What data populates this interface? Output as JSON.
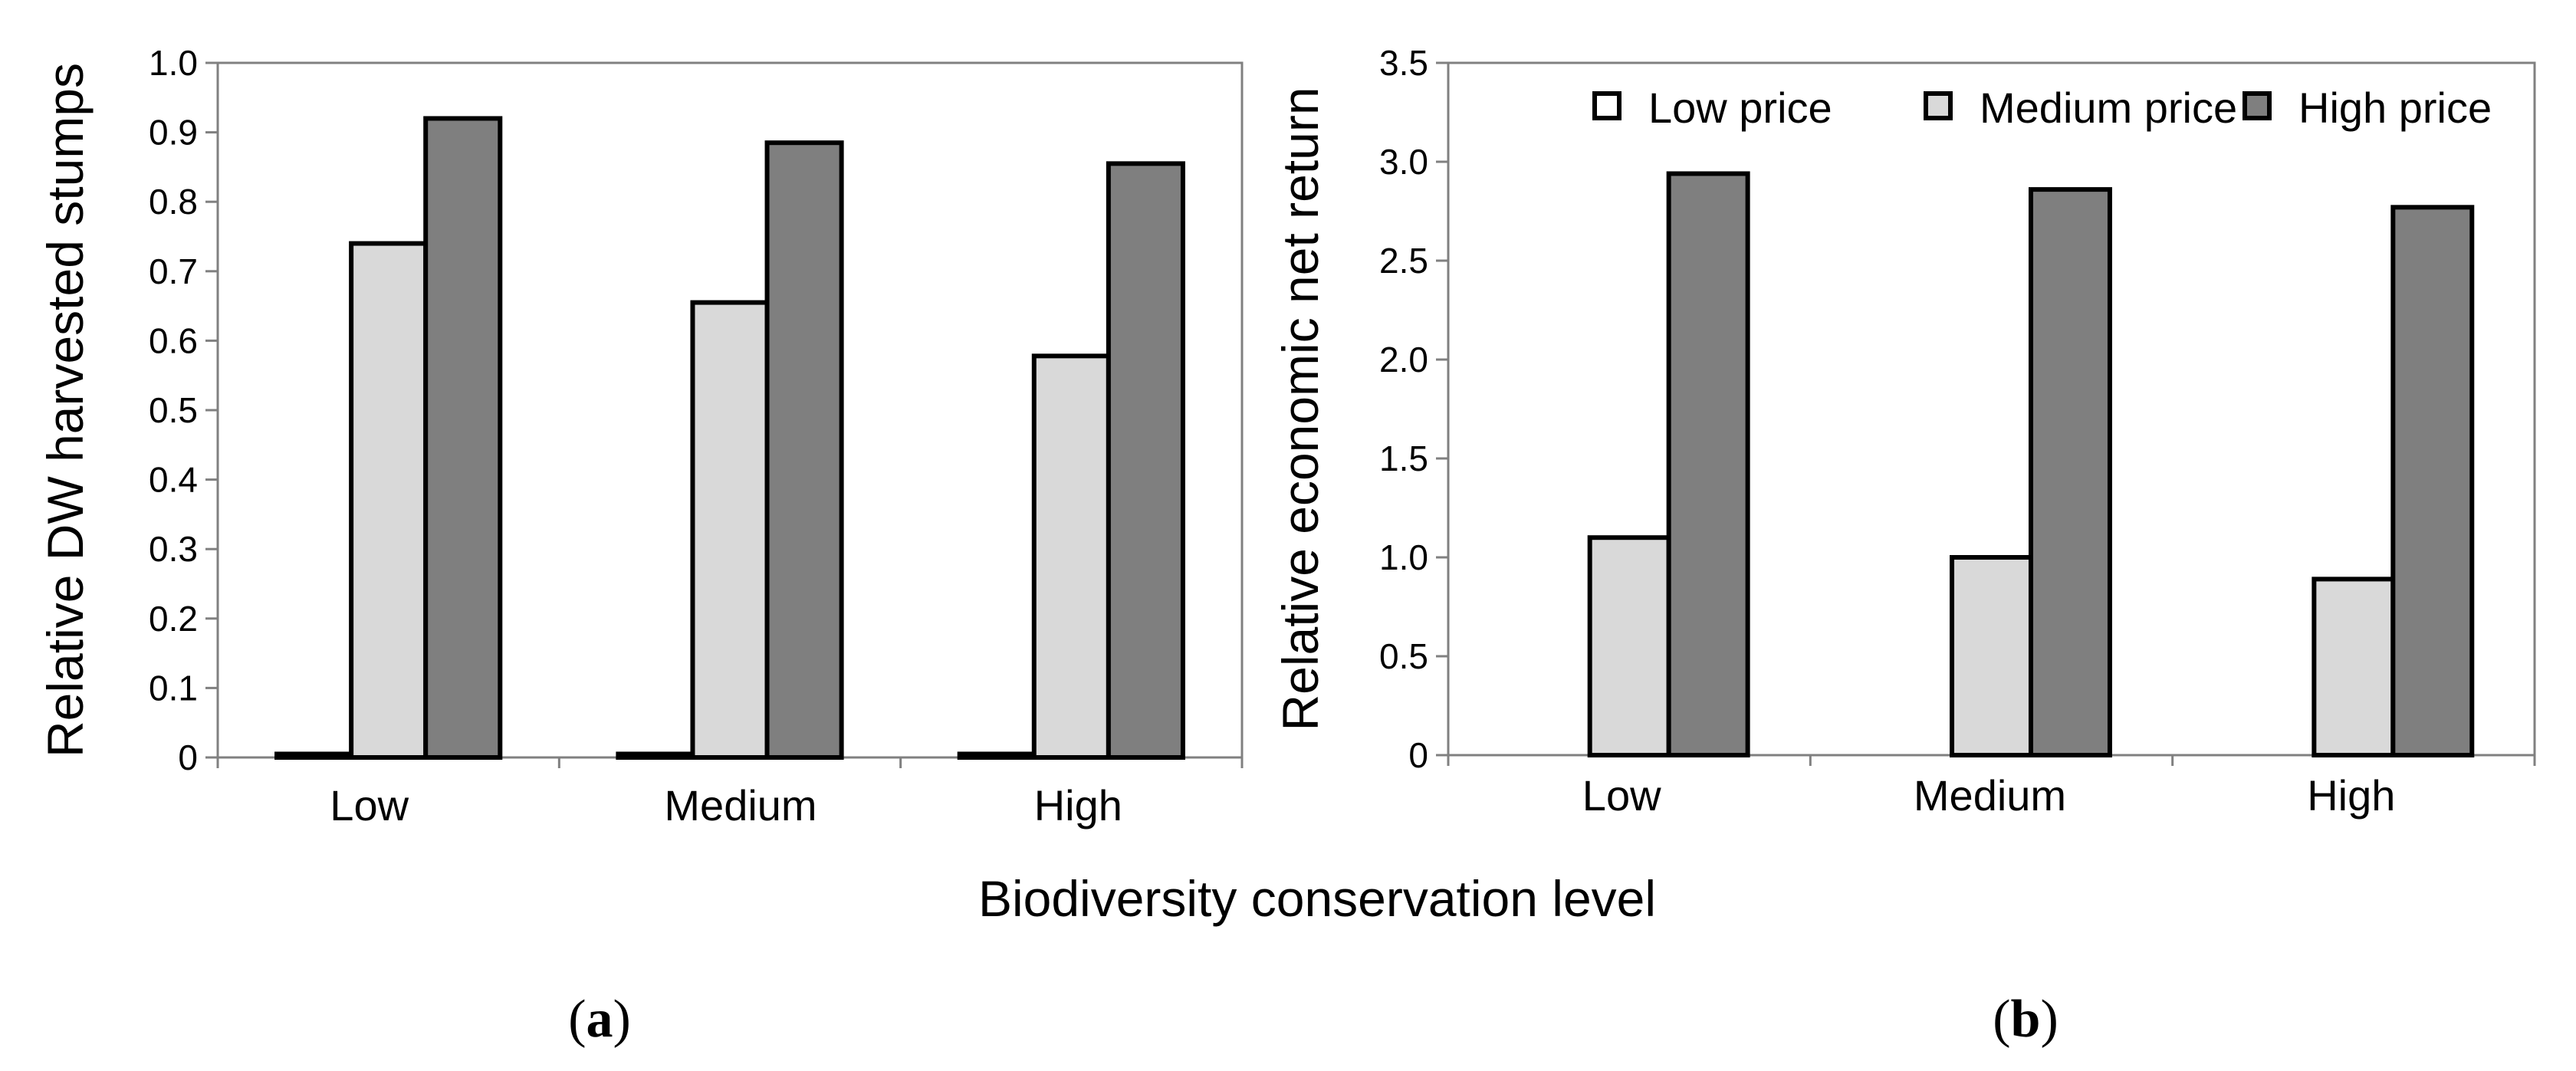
{
  "colors": {
    "low_price": "#ffffff",
    "medium_price": "#d9d9d9",
    "high_price": "#7f7f7f",
    "axis": "#808080",
    "bar_stroke": "#000000"
  },
  "shared_xlabel": "Biodiversity conservation level",
  "panel_labels": [
    {
      "open": "(",
      "letter": "a",
      "close": ")"
    },
    {
      "open": "(",
      "letter": "b",
      "close": ")"
    }
  ],
  "legend": {
    "items": [
      "Low price",
      "Medium price",
      "High price"
    ],
    "placement": "top-right"
  },
  "chart_data": [
    {
      "type": "bar",
      "title": "",
      "xlabel": "",
      "ylabel": "Relative DW harvested stumps",
      "categories": [
        "Low",
        "Medium",
        "High"
      ],
      "series": [
        {
          "name": "Low price",
          "values": [
            0.005,
            0.005,
            0.005
          ]
        },
        {
          "name": "Medium price",
          "values": [
            0.74,
            0.655,
            0.578
          ]
        },
        {
          "name": "High price",
          "values": [
            0.92,
            0.885,
            0.855
          ]
        }
      ],
      "ylim": [
        0,
        1.0
      ],
      "yticks": [
        "0",
        "0.1",
        "0.2",
        "0.3",
        "0.4",
        "0.5",
        "0.6",
        "0.7",
        "0.8",
        "0.9",
        "1.0"
      ],
      "grid": false
    },
    {
      "type": "bar",
      "title": "",
      "xlabel": "",
      "ylabel": "Relative economic net return",
      "categories": [
        "Low",
        "Medium",
        "High"
      ],
      "series": [
        {
          "name": "Low price",
          "values": [
            0,
            0,
            0
          ]
        },
        {
          "name": "Medium price",
          "values": [
            1.1,
            1.0,
            0.89
          ]
        },
        {
          "name": "High price",
          "values": [
            2.94,
            2.86,
            2.77
          ]
        }
      ],
      "ylim": [
        0,
        3.5
      ],
      "yticks": [
        "0",
        "0.5",
        "1.0",
        "1.5",
        "2.0",
        "2.5",
        "3.0",
        "3.5"
      ],
      "grid": false
    }
  ]
}
